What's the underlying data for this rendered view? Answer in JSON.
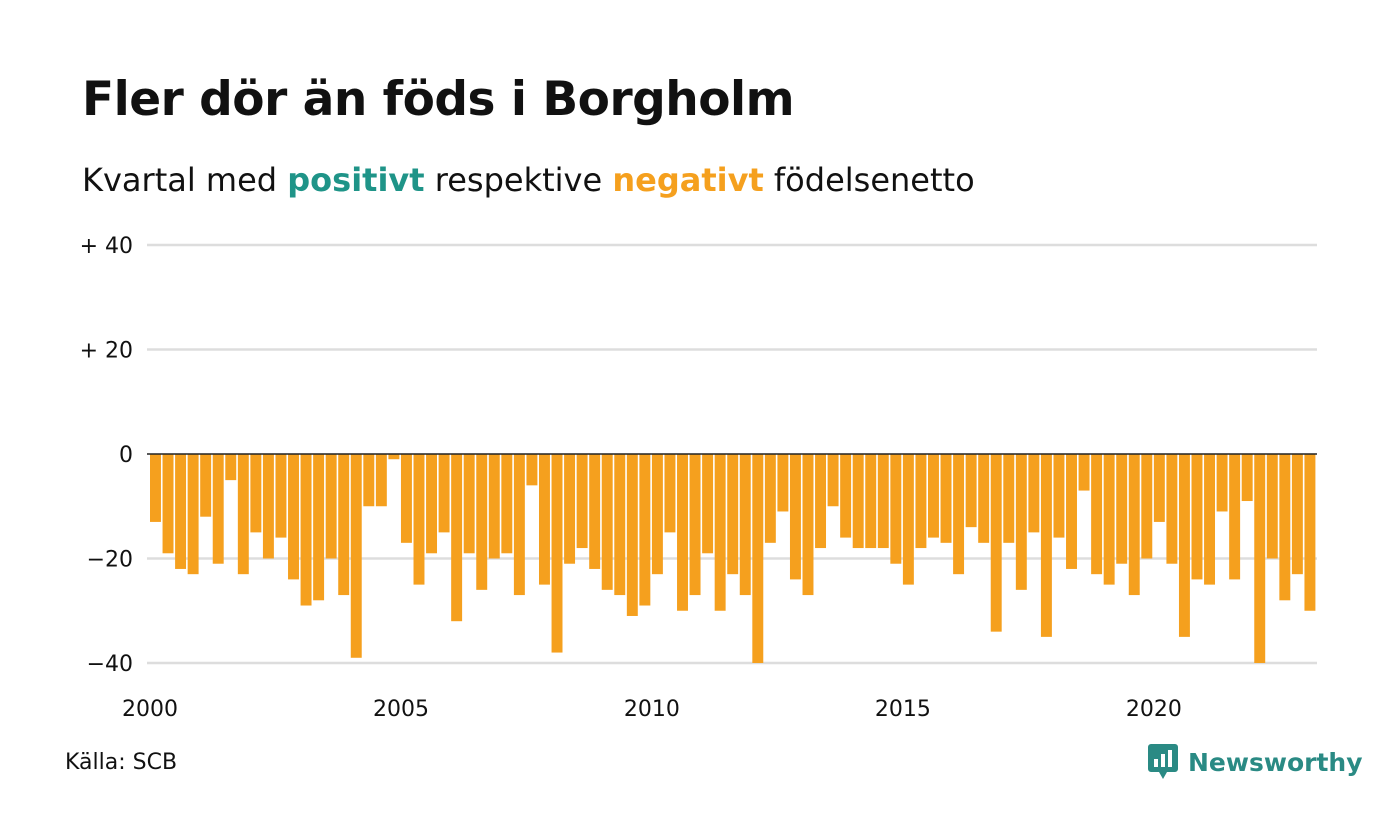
{
  "title": "Fler dör än föds i Borgholm",
  "subtitle": {
    "prefix": "Kvartal med",
    "positive_word": "positivt",
    "middle": "respektive",
    "negative_word": "negativt",
    "suffix": "födelsenetto"
  },
  "source": "Källa: SCB",
  "brand": "Newsworthy",
  "colors": {
    "positive": "#1f9488",
    "negative": "#f5a01e",
    "grid": "#dddddd",
    "zero_line": "#222222"
  },
  "chart_data": {
    "type": "bar",
    "title": "Fler dör än föds i Borgholm",
    "x_start_year": 2000,
    "periods_per_year": 4,
    "values": [
      -13,
      -19,
      -22,
      -23,
      -12,
      -21,
      -5,
      -23,
      -15,
      -20,
      -16,
      -24,
      -29,
      -28,
      -20,
      -27,
      -39,
      -10,
      -10,
      -1,
      -17,
      -25,
      -19,
      -15,
      -32,
      -19,
      -26,
      -20,
      -19,
      -27,
      -6,
      -25,
      -38,
      -21,
      -18,
      -22,
      -26,
      -27,
      -31,
      -29,
      -23,
      -15,
      -30,
      -27,
      -19,
      -30,
      -23,
      -27,
      -40,
      -17,
      -11,
      -24,
      -27,
      -18,
      -10,
      -16,
      -18,
      -18,
      -18,
      -21,
      -25,
      -18,
      -16,
      -17,
      -23,
      -14,
      -17,
      -34,
      -17,
      -26,
      -15,
      -35,
      -16,
      -22,
      -7,
      -23,
      -25,
      -21,
      -27,
      -20,
      -13,
      -21,
      -35,
      -24,
      -25,
      -11,
      -24,
      -9,
      -40,
      -20,
      -28,
      -23,
      -30
    ],
    "ylim": [
      -40,
      40
    ],
    "y_ticks": [
      {
        "value": 40,
        "label": "+ 40"
      },
      {
        "value": 20,
        "label": "+ 20"
      },
      {
        "value": 0,
        "label": "0"
      },
      {
        "value": -20,
        "label": "−20"
      },
      {
        "value": -40,
        "label": "−40"
      }
    ],
    "x_ticks": [
      {
        "year": 2000,
        "label": "2000"
      },
      {
        "year": 2005,
        "label": "2005"
      },
      {
        "year": 2010,
        "label": "2010"
      },
      {
        "year": 2015,
        "label": "2015"
      },
      {
        "year": 2020,
        "label": "2020"
      }
    ],
    "grid": true,
    "legend": "in subtitle"
  }
}
